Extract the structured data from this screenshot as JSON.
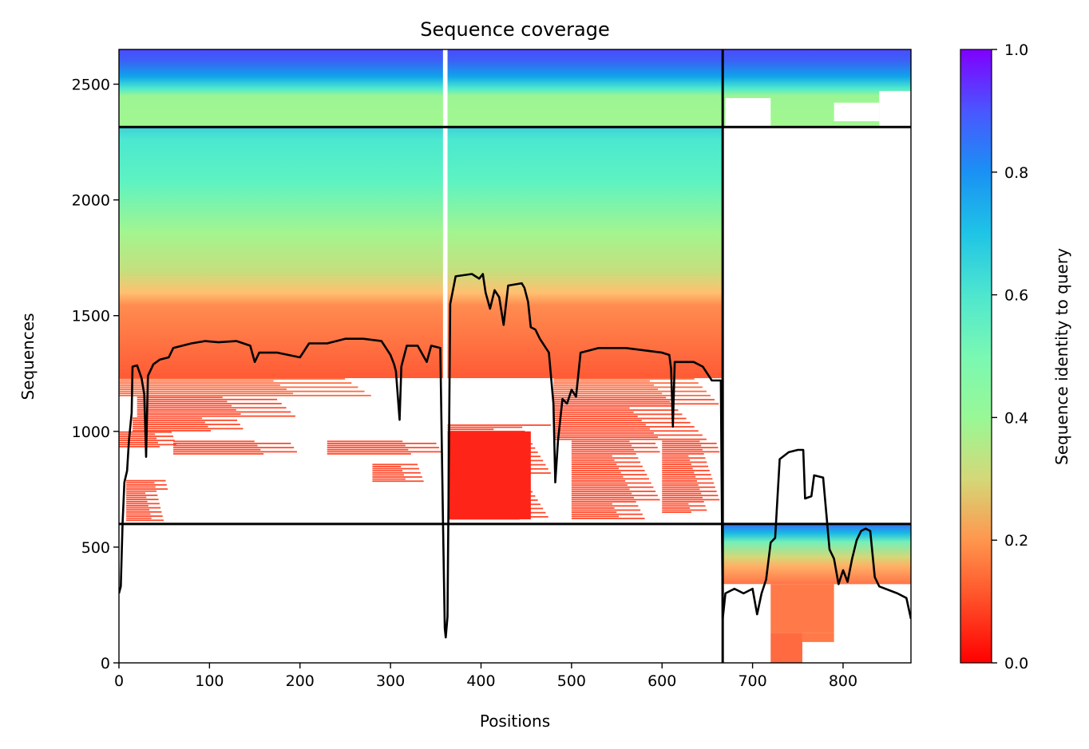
{
  "chart_data": {
    "type": "heatmap",
    "title": "Sequence coverage",
    "xlabel": "Positions",
    "ylabel": "Sequences",
    "xlim": [
      0,
      875
    ],
    "ylim": [
      0,
      2650
    ],
    "xticks": [
      0,
      100,
      200,
      300,
      400,
      500,
      600,
      700,
      800
    ],
    "yticks": [
      0,
      500,
      1000,
      1500,
      2000,
      2500
    ],
    "colorbar": {
      "label": "Sequence identity to query",
      "range": [
        0,
        1
      ],
      "ticks": [
        "0.0",
        "0.2",
        "0.4",
        "0.6",
        "0.8",
        "1.0"
      ],
      "colormap": "rainbow_r"
    },
    "chain_boundaries": {
      "x": [
        667
      ],
      "y": [
        600,
        2315
      ]
    },
    "coverage_line": [
      [
        0,
        300
      ],
      [
        2,
        330
      ],
      [
        4,
        600
      ],
      [
        6,
        780
      ],
      [
        9,
        830
      ],
      [
        11,
        960
      ],
      [
        14,
        1080
      ],
      [
        15,
        1280
      ],
      [
        20,
        1285
      ],
      [
        25,
        1230
      ],
      [
        28,
        1160
      ],
      [
        30,
        890
      ],
      [
        32,
        1240
      ],
      [
        38,
        1290
      ],
      [
        45,
        1310
      ],
      [
        55,
        1320
      ],
      [
        60,
        1360
      ],
      [
        70,
        1370
      ],
      [
        80,
        1380
      ],
      [
        95,
        1390
      ],
      [
        110,
        1385
      ],
      [
        130,
        1390
      ],
      [
        145,
        1370
      ],
      [
        150,
        1300
      ],
      [
        155,
        1340
      ],
      [
        175,
        1340
      ],
      [
        200,
        1320
      ],
      [
        210,
        1380
      ],
      [
        230,
        1380
      ],
      [
        250,
        1400
      ],
      [
        270,
        1400
      ],
      [
        290,
        1390
      ],
      [
        300,
        1330
      ],
      [
        304,
        1290
      ],
      [
        306,
        1260
      ],
      [
        310,
        1050
      ],
      [
        312,
        1280
      ],
      [
        318,
        1370
      ],
      [
        330,
        1370
      ],
      [
        340,
        1300
      ],
      [
        345,
        1370
      ],
      [
        355,
        1360
      ],
      [
        358,
        600
      ],
      [
        360,
        150
      ],
      [
        361,
        110
      ],
      [
        363,
        200
      ],
      [
        366,
        1550
      ],
      [
        372,
        1670
      ],
      [
        390,
        1680
      ],
      [
        398,
        1660
      ],
      [
        402,
        1680
      ],
      [
        405,
        1600
      ],
      [
        410,
        1530
      ],
      [
        415,
        1610
      ],
      [
        420,
        1580
      ],
      [
        425,
        1460
      ],
      [
        430,
        1630
      ],
      [
        445,
        1640
      ],
      [
        448,
        1620
      ],
      [
        452,
        1560
      ],
      [
        455,
        1450
      ],
      [
        460,
        1440
      ],
      [
        465,
        1400
      ],
      [
        475,
        1340
      ],
      [
        480,
        1120
      ],
      [
        482,
        780
      ],
      [
        485,
        960
      ],
      [
        490,
        1140
      ],
      [
        495,
        1120
      ],
      [
        500,
        1180
      ],
      [
        505,
        1150
      ],
      [
        510,
        1340
      ],
      [
        520,
        1350
      ],
      [
        530,
        1360
      ],
      [
        560,
        1360
      ],
      [
        600,
        1340
      ],
      [
        608,
        1330
      ],
      [
        610,
        1270
      ],
      [
        612,
        1020
      ],
      [
        614,
        1300
      ],
      [
        635,
        1300
      ],
      [
        645,
        1280
      ],
      [
        655,
        1220
      ],
      [
        665,
        1220
      ],
      [
        667,
        190
      ],
      [
        670,
        300
      ],
      [
        680,
        320
      ],
      [
        690,
        300
      ],
      [
        700,
        320
      ],
      [
        705,
        210
      ],
      [
        710,
        300
      ],
      [
        715,
        360
      ],
      [
        720,
        520
      ],
      [
        725,
        540
      ],
      [
        730,
        880
      ],
      [
        740,
        910
      ],
      [
        750,
        920
      ],
      [
        756,
        920
      ],
      [
        758,
        710
      ],
      [
        765,
        720
      ],
      [
        768,
        810
      ],
      [
        778,
        800
      ],
      [
        785,
        490
      ],
      [
        790,
        450
      ],
      [
        795,
        340
      ],
      [
        800,
        400
      ],
      [
        805,
        350
      ],
      [
        810,
        450
      ],
      [
        815,
        530
      ],
      [
        820,
        570
      ],
      [
        825,
        580
      ],
      [
        830,
        570
      ],
      [
        835,
        370
      ],
      [
        840,
        330
      ],
      [
        860,
        300
      ],
      [
        870,
        280
      ],
      [
        875,
        190
      ]
    ]
  }
}
